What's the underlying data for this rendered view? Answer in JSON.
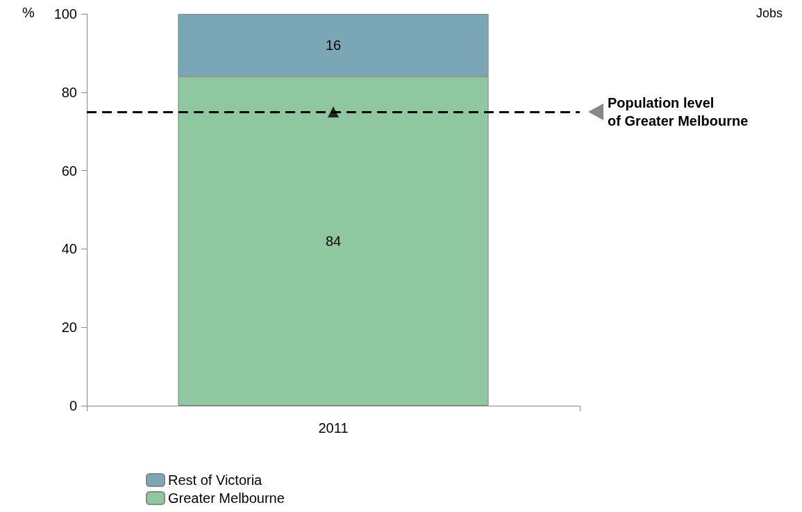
{
  "chart_data": {
    "type": "bar",
    "stacked": true,
    "ylabel": "%",
    "categories": [
      "2011"
    ],
    "series": [
      {
        "name": "Greater Melbourne",
        "color": "#8fc8a0",
        "values": [
          84
        ],
        "value_labels": [
          "84"
        ]
      },
      {
        "name": "Rest of Victoria",
        "color": "#7aa6b6",
        "values": [
          16
        ],
        "value_labels": [
          "16"
        ]
      },
      {
        "type": "scatter",
        "values": [
          75
        ],
        "color": "#000000",
        "marker": "triangle"
      }
    ],
    "ylim": [
      0,
      100
    ],
    "yticks": [
      0,
      20,
      40,
      60,
      80,
      100
    ],
    "grid": false,
    "legend": "bottom",
    "ref_lines": [
      {
        "axis": "y",
        "value": 75,
        "label": "Population level\nof Greater Melbourne",
        "color": "#000000",
        "line_style": "dashed"
      }
    ],
    "annotations": [
      "Jobs"
    ]
  }
}
